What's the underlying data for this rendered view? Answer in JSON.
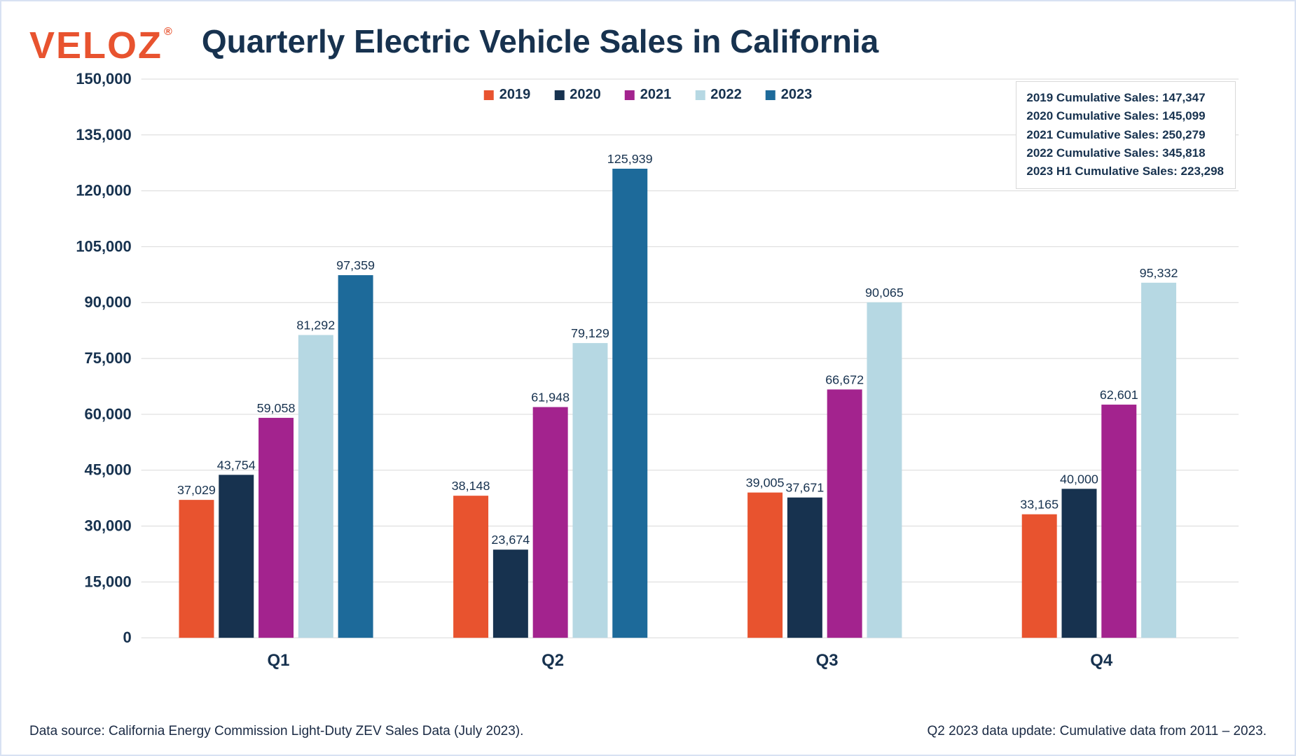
{
  "logo": {
    "text": "VELOZ",
    "reg": "®",
    "color": "#e8532f"
  },
  "title": "Quarterly Electric Vehicle Sales in California",
  "chart": {
    "type": "bar-grouped",
    "categories": [
      "Q1",
      "Q2",
      "Q3",
      "Q4"
    ],
    "ylim": [
      0,
      150000
    ],
    "ytick_step": 15000,
    "ytick_labels": [
      "0",
      "15,000",
      "30,000",
      "45,000",
      "60,000",
      "75,000",
      "90,000",
      "105,000",
      "120,000",
      "135,000",
      "150,000"
    ],
    "grid_color": "#d9d9d9",
    "background_color": "#ffffff",
    "bar_width": 0.145,
    "group_gap": 0.28,
    "series": [
      {
        "name": "2019",
        "color": "#e8532f",
        "values": [
          37029,
          38148,
          39005,
          33165
        ],
        "labels": [
          "37,029",
          "38,148",
          "39,005",
          "33,165"
        ]
      },
      {
        "name": "2020",
        "color": "#17324f",
        "values": [
          43754,
          23674,
          37671,
          40000
        ],
        "labels": [
          "43,754",
          "23,674",
          "37,671",
          "40,000"
        ]
      },
      {
        "name": "2021",
        "color": "#a3238e",
        "values": [
          59058,
          61948,
          66672,
          62601
        ],
        "labels": [
          "59,058",
          "61,948",
          "66,672",
          "62,601"
        ]
      },
      {
        "name": "2022",
        "color": "#b6d8e3",
        "values": [
          81292,
          79129,
          90065,
          95332
        ],
        "labels": [
          "81,292",
          "79,129",
          "90,065",
          "95,332"
        ]
      },
      {
        "name": "2023",
        "color": "#1d6a9a",
        "values": [
          97359,
          125939,
          null,
          null
        ],
        "labels": [
          "97,359",
          "125,939",
          null,
          null
        ]
      }
    ]
  },
  "cumulative": [
    "2019 Cumulative Sales: 147,347",
    "2020 Cumulative Sales: 145,099",
    "2021 Cumulative Sales: 250,279",
    "2022 Cumulative Sales: 345,818",
    "2023 H1 Cumulative Sales: 223,298"
  ],
  "footer": {
    "left": "Data source: California Energy Commission Light-Duty ZEV Sales Data (July 2023).",
    "right": "Q2 2023 data update: Cumulative data from 2011 – 2023."
  }
}
